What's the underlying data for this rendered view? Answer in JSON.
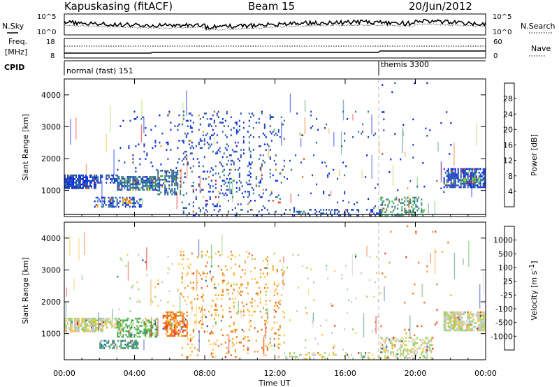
{
  "header": {
    "station": "Kapuskasing (fitACF)",
    "beam": "Beam 15",
    "date": "20/Jun/2012"
  },
  "noise_panel": {
    "left_label": "N.Sky",
    "right_label": "N.Search",
    "tick_labels": [
      "10^5",
      "10^0"
    ]
  },
  "freq_panel": {
    "left_label_1": "Freq.",
    "left_label_2": "[MHz]",
    "left_ticks": [
      "18",
      "8"
    ],
    "right_label": "Nave",
    "right_ticks": [
      "60",
      "0"
    ]
  },
  "cpid_panel": {
    "label": "CPID",
    "modes": [
      {
        "text": "normal (fast) 151",
        "start_hour": 0
      },
      {
        "text": "themis 3300",
        "start_hour": 18
      }
    ]
  },
  "chart_data": [
    {
      "type": "heatmap",
      "name": "power-panel",
      "ylabel": "Slant Range [km]",
      "xlabel": "Time UT",
      "x_range_hours": [
        0,
        24
      ],
      "ylim": [
        180,
        4500
      ],
      "yticks": [
        1000,
        2000,
        3000,
        4000
      ],
      "xtick_labels": [
        "00:00",
        "04:00",
        "08:00",
        "12:00",
        "16:00",
        "20:00",
        "00:00"
      ],
      "colorbar": {
        "label": "Power [dB]",
        "ticks": [
          "28",
          "24",
          "20",
          "16",
          "12",
          "8",
          "4"
        ],
        "colors": [
          "#0022ee",
          "#2244bb",
          "#2f6e9e",
          "#3a8f6b",
          "#56c456",
          "#a8d84a",
          "#f3c21b",
          "#f39a1b",
          "#ef6b16",
          "#e83a14",
          "#e31010"
        ]
      },
      "clusters": [
        {
          "t0": 0.0,
          "t1": 1.8,
          "r0": 1100,
          "r1": 1500,
          "level": 1,
          "density": 0.85
        },
        {
          "t0": 1.8,
          "t1": 3.0,
          "r0": 1250,
          "r1": 1500,
          "level": 1,
          "density": 0.6
        },
        {
          "t0": 3.0,
          "t1": 5.3,
          "r0": 1050,
          "r1": 1450,
          "level": 2,
          "density": 0.7
        },
        {
          "t0": 1.7,
          "t1": 4.4,
          "r0": 500,
          "r1": 800,
          "level": 1,
          "density": 0.5
        },
        {
          "t0": 3.3,
          "t1": 3.8,
          "r0": 600,
          "r1": 750,
          "level": 7,
          "density": 0.6
        },
        {
          "t0": 5.3,
          "t1": 6.6,
          "r0": 900,
          "r1": 1650,
          "level": 2,
          "density": 0.55
        },
        {
          "t0": 6.6,
          "t1": 12.5,
          "r0": 250,
          "r1": 3500,
          "level": 1,
          "density": 0.11
        },
        {
          "t0": 3.0,
          "t1": 6.6,
          "r0": 1600,
          "r1": 3500,
          "level": 0,
          "density": 0.03
        },
        {
          "t0": 12.5,
          "t1": 18.0,
          "r0": 200,
          "r1": 3500,
          "level": 1,
          "density": 0.015
        },
        {
          "t0": 12.5,
          "t1": 18.0,
          "r0": 200,
          "r1": 420,
          "level": 1,
          "density": 0.25
        },
        {
          "t0": 18.0,
          "t1": 20.5,
          "r0": 200,
          "r1": 800,
          "level": 3,
          "density": 0.35
        },
        {
          "t0": 18.0,
          "t1": 22.0,
          "r0": 800,
          "r1": 4400,
          "level": 0,
          "density": 0.012
        },
        {
          "t0": 21.6,
          "t1": 24.0,
          "r0": 1100,
          "r1": 1700,
          "level": 1,
          "density": 0.8
        },
        {
          "t0": 22.5,
          "t1": 24.0,
          "r0": 1250,
          "r1": 1400,
          "level": 4,
          "density": 0.45
        }
      ]
    },
    {
      "type": "heatmap",
      "name": "velocity-panel",
      "ylabel": "Slant Range [km]",
      "xlabel": "Time UT",
      "x_range_hours": [
        0,
        24
      ],
      "ylim": [
        180,
        4500
      ],
      "yticks": [
        1000,
        2000,
        3000,
        4000
      ],
      "xtick_labels": [
        "00:00",
        "04:00",
        "08:00",
        "12:00",
        "16:00",
        "20:00",
        "00:00"
      ],
      "colorbar": {
        "label": "Velocity [m s",
        "label_sup": "-1",
        "label_end": "]",
        "ticks": [
          "1000",
          "500",
          "100",
          "25",
          "-25",
          "-100",
          "-500",
          "-1000"
        ],
        "colors": [
          "#1f3fb8",
          "#2e6aa8",
          "#3d8f6f",
          "#4fb34f",
          "#8fd460",
          "#c8c8c8",
          "#f7c848",
          "#f7a01e",
          "#ee6a14",
          "#e83a12",
          "#e01010"
        ]
      },
      "clusters": [
        {
          "t0": 0.0,
          "t1": 2.2,
          "r0": 1100,
          "r1": 1500,
          "level": 5,
          "density": 0.85
        },
        {
          "t0": 2.2,
          "t1": 3.2,
          "r0": 1200,
          "r1": 1500,
          "level": 5,
          "density": 0.55
        },
        {
          "t0": 3.0,
          "t1": 5.3,
          "r0": 900,
          "r1": 1500,
          "level": 3,
          "density": 0.55
        },
        {
          "t0": 2.0,
          "t1": 4.2,
          "r0": 550,
          "r1": 800,
          "level": 2,
          "density": 0.55
        },
        {
          "t0": 5.6,
          "t1": 7.0,
          "r0": 950,
          "r1": 1700,
          "level": 8,
          "density": 0.55
        },
        {
          "t0": 6.6,
          "t1": 12.5,
          "r0": 250,
          "r1": 3600,
          "level": 7,
          "density": 0.1
        },
        {
          "t0": 3.0,
          "t1": 6.6,
          "r0": 1600,
          "r1": 3500,
          "level": 5,
          "density": 0.03
        },
        {
          "t0": 12.5,
          "t1": 18.0,
          "r0": 200,
          "r1": 3500,
          "level": 5,
          "density": 0.015
        },
        {
          "t0": 12.5,
          "t1": 18.0,
          "r0": 200,
          "r1": 420,
          "level": 5,
          "density": 0.25
        },
        {
          "t0": 18.0,
          "t1": 21.0,
          "r0": 200,
          "r1": 900,
          "level": 5,
          "density": 0.4
        },
        {
          "t0": 18.0,
          "t1": 22.0,
          "r0": 900,
          "r1": 4400,
          "level": 8,
          "density": 0.012
        },
        {
          "t0": 21.6,
          "t1": 24.0,
          "r0": 1100,
          "r1": 1700,
          "level": 5,
          "density": 0.8
        }
      ]
    }
  ]
}
